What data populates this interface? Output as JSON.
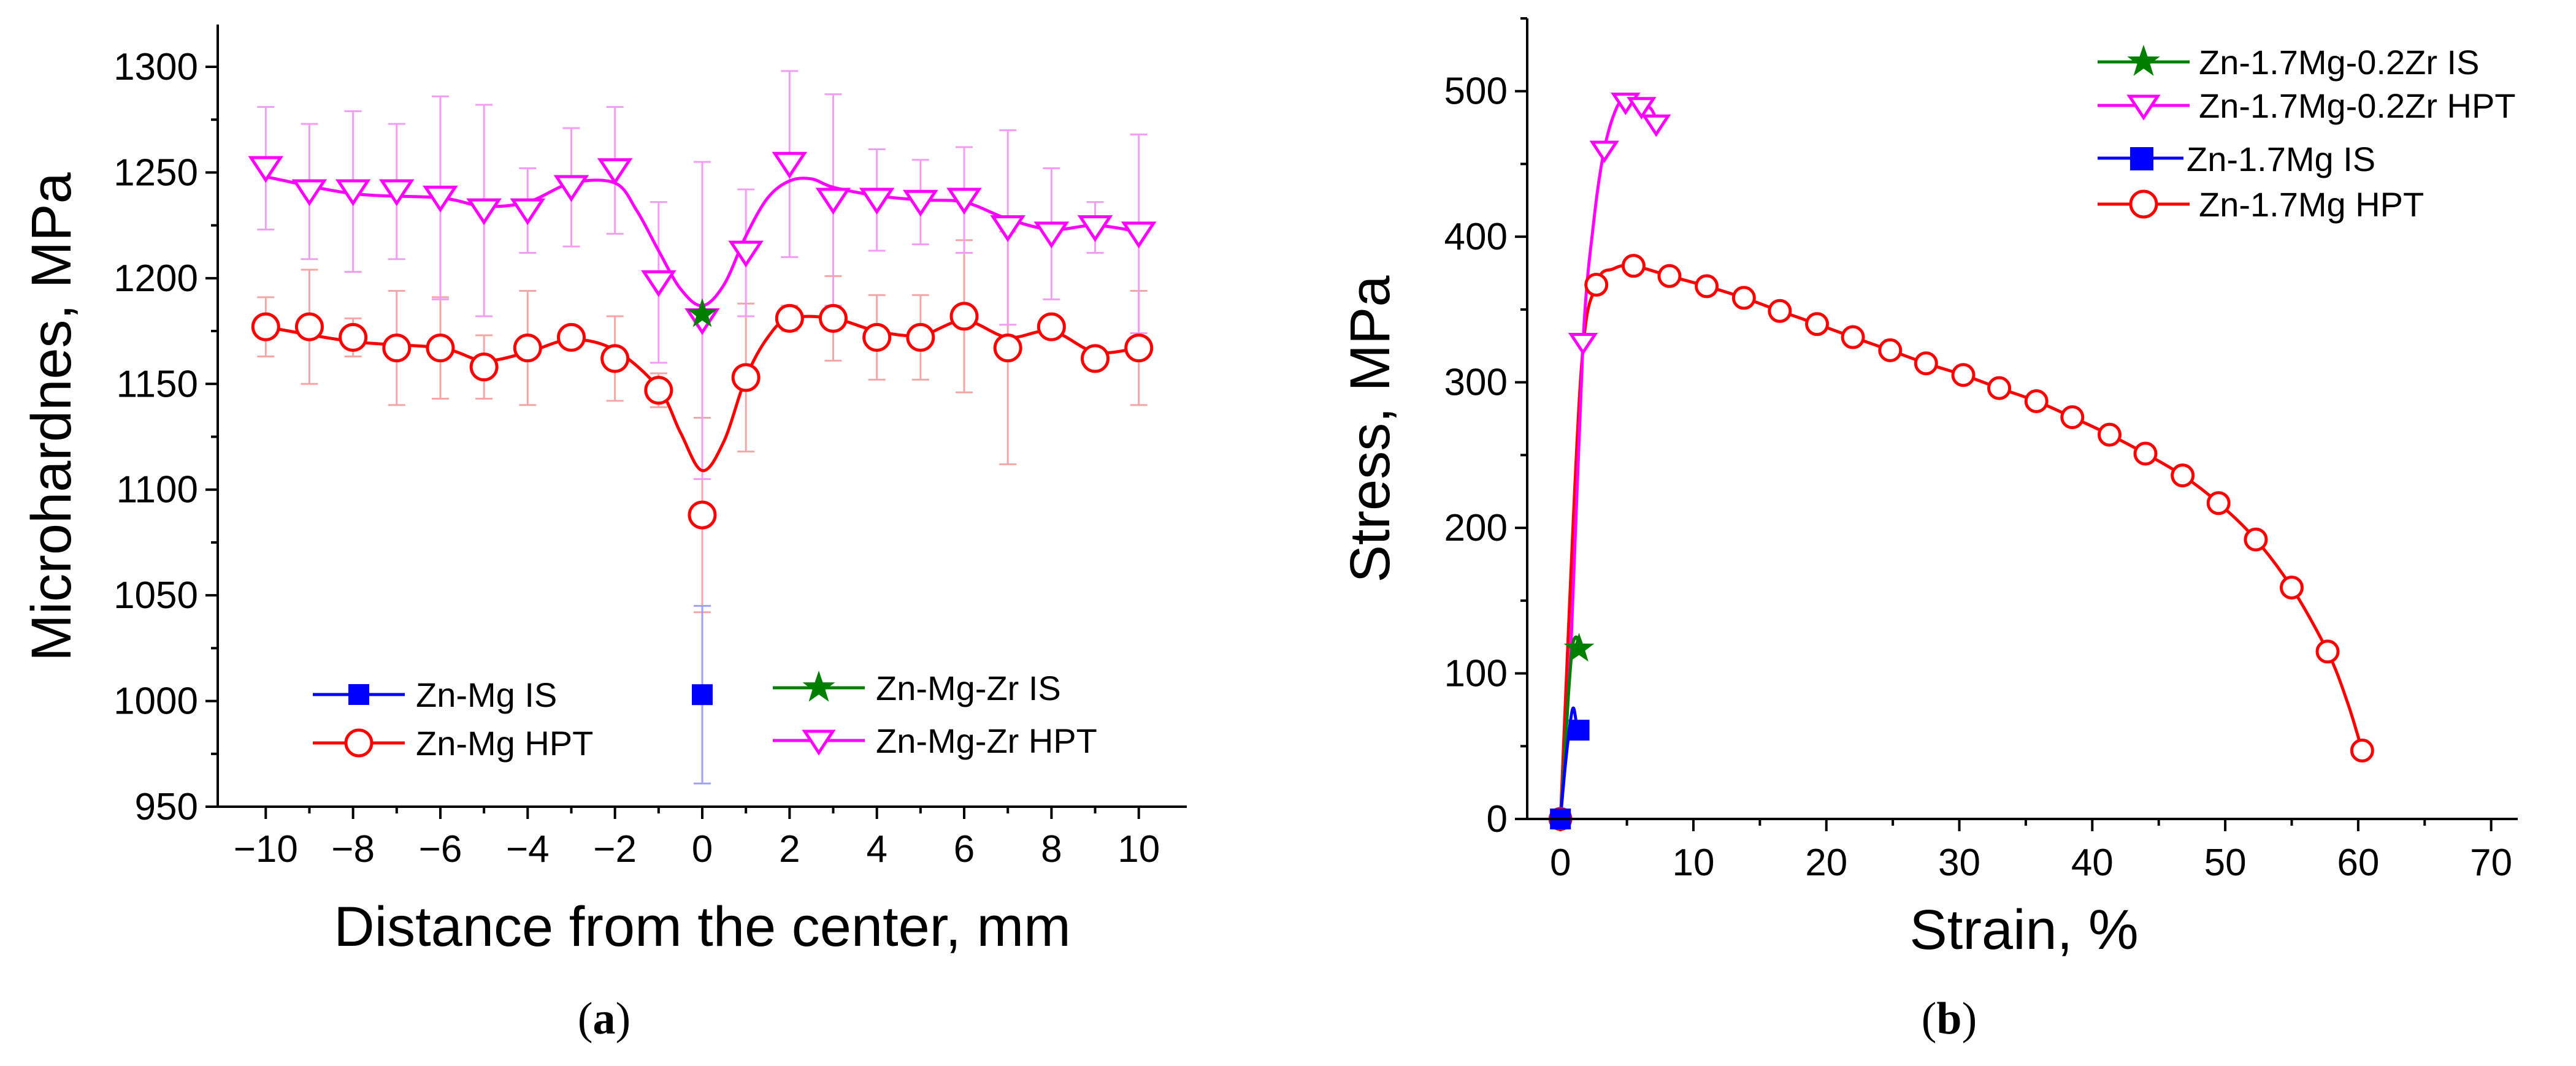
{
  "colors": {
    "zn_mg_is": "#0000ff",
    "zn_mg_hpt": "#ff0000",
    "zn_mg_zr_is": "#007f00",
    "zn_mg_zr_hpt": "#ff00ff",
    "errorbar_red": "#f4a6a6",
    "errorbar_magenta": "#f39cf3",
    "errorbar_blue": "#9f9fff",
    "axis": "#000000"
  },
  "chart_data": [
    {
      "id": "a",
      "type": "line",
      "caption": "a",
      "xlabel": "Distance from the center, mm",
      "ylabel": "Microhardnes, MPa",
      "xlim": [
        -11.1,
        11.1
      ],
      "ylim": [
        950,
        1320
      ],
      "xticks": [
        -10,
        -8,
        -6,
        -4,
        -2,
        0,
        2,
        4,
        6,
        8,
        10
      ],
      "xtick_labels": [
        "−10",
        "−8",
        "−6",
        "−4",
        "−2",
        "0",
        "2",
        "4",
        "6",
        "8",
        "10"
      ],
      "yticks": [
        950,
        1000,
        1050,
        1100,
        1150,
        1200,
        1250,
        1300
      ],
      "ytick_labels": [
        "950",
        "1000",
        "1050",
        "1100",
        "1150",
        "1200",
        "1250",
        "1300"
      ],
      "legend_position": "bottom",
      "series": [
        {
          "key": "zn_mg_is",
          "name": "Zn-Mg IS",
          "marker": "square",
          "fit": [],
          "x": [
            0
          ],
          "values": [
            1003
          ],
          "errors": [
            42
          ]
        },
        {
          "key": "zn_mg_hpt",
          "name": "Zn-Mg HPT",
          "marker": "circle",
          "fit": [
            [
              -10,
              1177
            ],
            [
              -8,
              1170
            ],
            [
              -6,
              1167
            ],
            [
              -5,
              1161
            ],
            [
              -4,
              1165
            ],
            [
              -3,
              1171
            ],
            [
              -2,
              1166
            ],
            [
              -1,
              1148
            ],
            [
              -0.5,
              1127
            ],
            [
              0,
              1109
            ],
            [
              0.5,
              1123
            ],
            [
              1,
              1153
            ],
            [
              1.5,
              1172
            ],
            [
              2,
              1181
            ],
            [
              3,
              1181
            ],
            [
              4,
              1175
            ],
            [
              5,
              1173
            ],
            [
              6,
              1180
            ],
            [
              7,
              1172
            ],
            [
              8,
              1175
            ],
            [
              9,
              1165
            ],
            [
              10,
              1167
            ]
          ],
          "x": [
            -10,
            -9,
            -8,
            -7,
            -6,
            -5,
            -4,
            -3,
            -2,
            -1,
            0,
            1,
            2,
            3,
            4,
            5,
            6,
            7,
            8,
            9,
            10
          ],
          "values": [
            1177,
            1177,
            1172,
            1167,
            1167,
            1158,
            1167,
            1172,
            1162,
            1147,
            1088,
            1153,
            1181,
            1181,
            1172,
            1172,
            1182,
            1167,
            1177,
            1162,
            1167
          ],
          "errors": [
            14,
            27,
            9,
            27,
            24,
            15,
            27,
            5,
            20,
            8,
            46,
            35,
            6,
            20,
            20,
            20,
            36,
            55,
            5,
            5,
            27
          ]
        },
        {
          "key": "zn_mg_zr_is",
          "name": "Zn-Mg-Zr IS",
          "marker": "star",
          "fit": [],
          "x": [
            0
          ],
          "values": [
            1183
          ],
          "errors": [
            0
          ]
        },
        {
          "key": "zn_mg_zr_hpt",
          "name": "Zn-Mg-Zr HPT",
          "marker": "triangle-down",
          "fit": [
            [
              -10,
              1248
            ],
            [
              -8,
              1240
            ],
            [
              -6,
              1238
            ],
            [
              -5,
              1234
            ],
            [
              -4,
              1236
            ],
            [
              -3,
              1245
            ],
            [
              -2,
              1245
            ],
            [
              -1.5,
              1232
            ],
            [
              -1,
              1213
            ],
            [
              -0.5,
              1195
            ],
            [
              0,
              1187
            ],
            [
              0.5,
              1197
            ],
            [
              1,
              1220
            ],
            [
              1.5,
              1238
            ],
            [
              2,
              1246
            ],
            [
              2.5,
              1247
            ],
            [
              3,
              1243
            ],
            [
              4,
              1239
            ],
            [
              5,
              1237
            ],
            [
              6,
              1236
            ],
            [
              7,
              1228
            ],
            [
              8,
              1223
            ],
            [
              9,
              1225
            ],
            [
              10,
              1222
            ]
          ],
          "x": [
            -10,
            -9,
            -8,
            -7,
            -6,
            -5,
            -4,
            -3,
            -2,
            -1,
            0,
            1,
            2,
            3,
            4,
            5,
            6,
            7,
            8,
            9,
            10
          ],
          "values": [
            1252,
            1241,
            1241,
            1241,
            1238,
            1232,
            1232,
            1243,
            1251,
            1198,
            1180,
            1212,
            1254,
            1237,
            1237,
            1236,
            1237,
            1224,
            1221,
            1224,
            1221
          ],
          "errors": [
            29,
            32,
            38,
            32,
            48,
            50,
            20,
            28,
            30,
            38,
            75,
            30,
            44,
            50,
            24,
            20,
            25,
            46,
            31,
            12,
            47
          ]
        }
      ]
    },
    {
      "id": "b",
      "type": "line",
      "caption": "b",
      "xlabel": "Strain, %",
      "ylabel": "Stress, MPa",
      "xlim": [
        -2.5,
        72
      ],
      "ylim": [
        0,
        550
      ],
      "xticks": [
        0,
        10,
        20,
        30,
        40,
        50,
        60,
        70
      ],
      "xtick_labels": [
        "0",
        "10",
        "20",
        "30",
        "40",
        "50",
        "60",
        "70"
      ],
      "yticks": [
        0,
        100,
        200,
        300,
        400,
        500
      ],
      "ytick_labels": [
        "0",
        "100",
        "200",
        "300",
        "400",
        "500"
      ],
      "legend_position": "top-right",
      "series": [
        {
          "key": "zn_mg_zr_is",
          "name": "Zn-1.7Mg-0.2Zr IS",
          "marker": "star",
          "line": [
            [
              0,
              0
            ],
            [
              0.3,
              40
            ],
            [
              0.6,
              85
            ],
            [
              0.9,
              118
            ],
            [
              1.2,
              125
            ],
            [
              1.4,
              117
            ]
          ],
          "points": [
            [
              1.4,
              117
            ]
          ]
        },
        {
          "key": "zn_mg_zr_hpt",
          "name": "Zn-1.7Mg-0.2Zr HPT",
          "marker": "triangle-down",
          "line": [
            [
              0,
              0
            ],
            [
              0.8,
              120
            ],
            [
              1.7,
              327
            ],
            [
              2.5,
              410
            ],
            [
              3.3,
              460
            ],
            [
              4.2,
              488
            ],
            [
              5.0,
              496
            ],
            [
              5.9,
              492
            ],
            [
              6.8,
              488
            ],
            [
              7.3,
              478
            ]
          ],
          "points": [
            [
              1.7,
              327
            ],
            [
              3.3,
              459
            ],
            [
              4.9,
              492
            ],
            [
              6.1,
              489
            ],
            [
              7.2,
              477
            ]
          ]
        },
        {
          "key": "zn_mg_is",
          "name": "Zn-1.7Mg IS",
          "marker": "square",
          "line": [
            [
              0,
              0
            ],
            [
              0.4,
              40
            ],
            [
              0.8,
              70
            ],
            [
              1.0,
              76
            ],
            [
              1.2,
              66
            ],
            [
              1.4,
              61
            ]
          ],
          "points": [
            [
              0,
              0
            ],
            [
              1.4,
              61
            ]
          ]
        },
        {
          "key": "zn_mg_hpt",
          "name": "Zn-1.7Mg HPT",
          "marker": "circle",
          "line": [
            [
              0,
              0
            ],
            [
              1.5,
              300
            ],
            [
              2.7,
              367
            ],
            [
              4,
              378
            ],
            [
              5.5,
              380
            ],
            [
              8.2,
              373
            ],
            [
              11,
              366
            ],
            [
              13.8,
              358
            ],
            [
              16.5,
              349
            ],
            [
              19.3,
              340
            ],
            [
              22,
              331
            ],
            [
              24.8,
              322
            ],
            [
              27.5,
              313
            ],
            [
              30.3,
              305
            ],
            [
              33,
              296
            ],
            [
              35.8,
              287
            ],
            [
              38.5,
              276
            ],
            [
              41.3,
              264
            ],
            [
              44,
              251
            ],
            [
              46.8,
              236
            ],
            [
              49.5,
              217
            ],
            [
              52.3,
              192
            ],
            [
              55,
              159
            ],
            [
              57.7,
              115
            ],
            [
              59.2,
              80
            ],
            [
              60.3,
              47
            ]
          ],
          "points": [
            [
              0,
              0
            ],
            [
              2.7,
              367
            ],
            [
              5.5,
              380
            ],
            [
              8.2,
              373
            ],
            [
              11,
              366
            ],
            [
              13.8,
              358
            ],
            [
              16.5,
              349
            ],
            [
              19.3,
              340
            ],
            [
              22,
              331
            ],
            [
              24.8,
              322
            ],
            [
              27.5,
              313
            ],
            [
              30.3,
              305
            ],
            [
              33,
              296
            ],
            [
              35.8,
              287
            ],
            [
              38.5,
              276
            ],
            [
              41.3,
              264
            ],
            [
              44,
              251
            ],
            [
              46.8,
              236
            ],
            [
              49.5,
              217
            ],
            [
              52.3,
              192
            ],
            [
              55,
              159
            ],
            [
              57.7,
              115
            ],
            [
              60.3,
              47
            ]
          ]
        }
      ]
    }
  ]
}
